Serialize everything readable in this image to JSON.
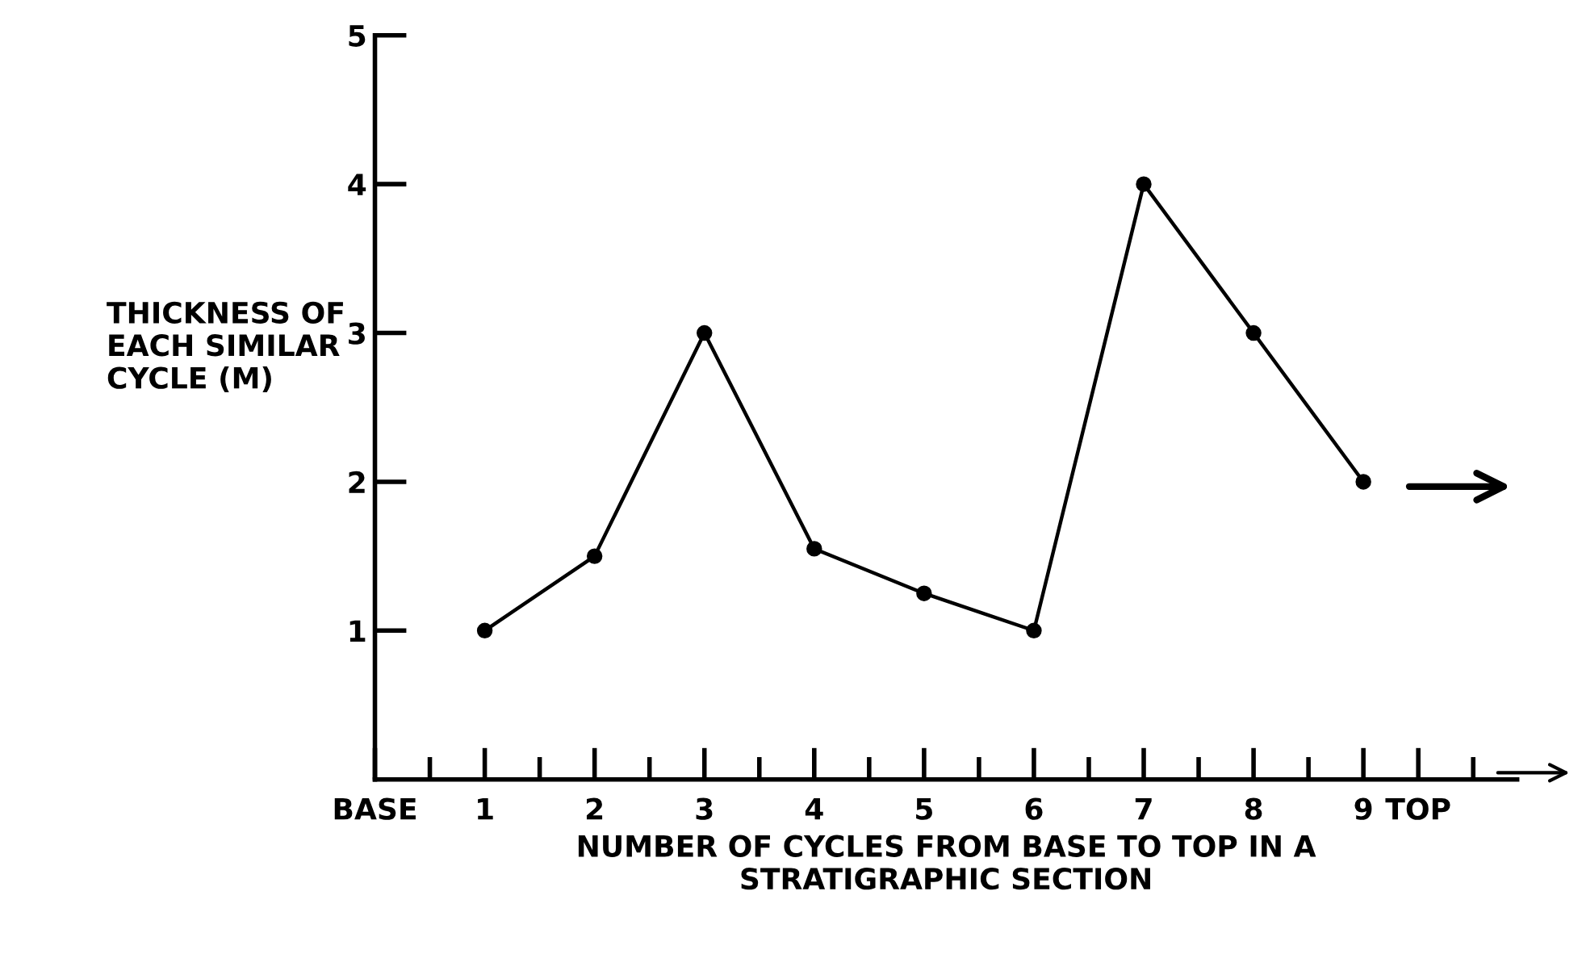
{
  "chart_data": {
    "type": "line",
    "xlabel": "NUMBER OF CYCLES FROM BASE TO TOP IN A\nSTRATIGRAPHIC SECTION",
    "ylabel": "THICKNESS OF\nEACH SIMILAR\nCYCLE (M)",
    "x": [
      1,
      2,
      3,
      4,
      5,
      6,
      7,
      8,
      9
    ],
    "series": [
      {
        "color": "#000000",
        "values": [
          1.0,
          1.5,
          3.0,
          1.55,
          1.25,
          1.0,
          4.0,
          3.0,
          2.0
        ]
      }
    ],
    "xlim": [
      0,
      10.4
    ],
    "xticks": [
      {
        "value": 0,
        "label": "BASE"
      },
      {
        "value": 0.5,
        "label": null
      },
      1,
      {
        "value": 1.5,
        "label": null
      },
      2,
      {
        "value": 2.5,
        "label": null
      },
      3,
      {
        "value": 3.5,
        "label": null
      },
      4,
      {
        "value": 4.5,
        "label": null
      },
      5,
      {
        "value": 5.5,
        "label": null
      },
      6,
      {
        "value": 6.5,
        "label": null
      },
      7,
      {
        "value": 7.5,
        "label": null
      },
      8,
      {
        "value": 8.5,
        "label": null
      },
      9,
      {
        "value": 9.5,
        "label": "TOP"
      },
      {
        "value": 10,
        "label": null
      }
    ],
    "ylim": [
      0,
      5
    ],
    "yticks": [
      1,
      2,
      3,
      4,
      5
    ],
    "marker": "circle",
    "line_style": "solid",
    "grid": false,
    "legend": false
  }
}
